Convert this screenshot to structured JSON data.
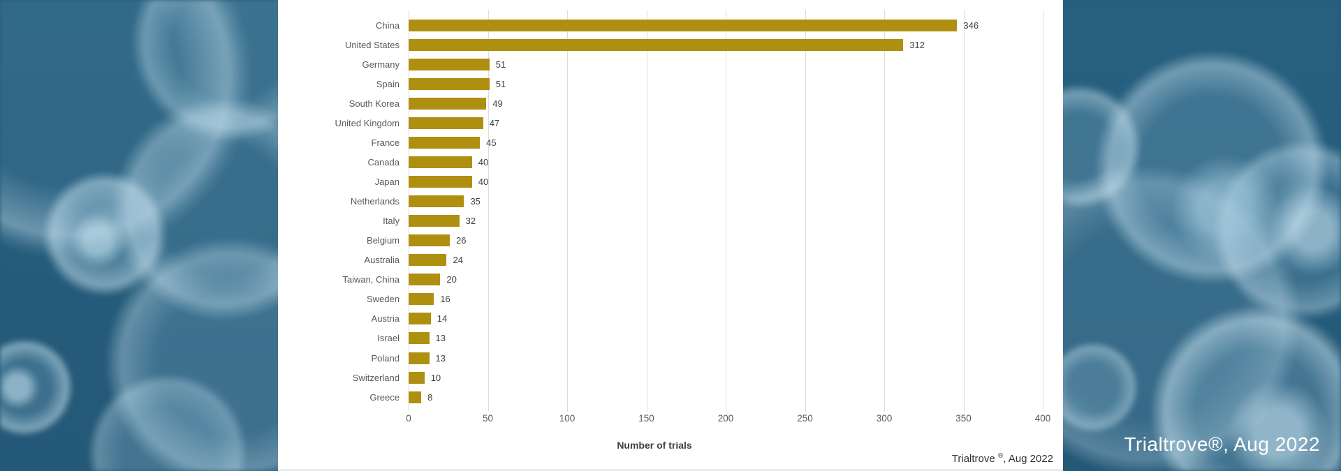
{
  "chart_data": {
    "type": "bar",
    "orientation": "horizontal",
    "title": "",
    "xlabel": "Number of trials",
    "ylabel": "",
    "categories": [
      "China",
      "United States",
      "Germany",
      "Spain",
      "South Korea",
      "United Kingdom",
      "France",
      "Canada",
      "Japan",
      "Netherlands",
      "Italy",
      "Belgium",
      "Australia",
      "Taiwan, China",
      "Sweden",
      "Austria",
      "Israel",
      "Poland",
      "Switzerland",
      "Greece"
    ],
    "values": [
      346,
      312,
      51,
      51,
      49,
      47,
      45,
      40,
      40,
      35,
      32,
      26,
      24,
      20,
      16,
      14,
      13,
      13,
      10,
      8
    ],
    "xlim": [
      0,
      400
    ],
    "xticks": [
      0,
      50,
      100,
      150,
      200,
      250,
      300,
      350,
      400
    ],
    "grid": true,
    "value_labels": true,
    "legend": "none"
  },
  "panel_source": {
    "prefix": "Trialtrove ",
    "registered": "®",
    "suffix": ", Aug 2022"
  },
  "background_caption": "Trialtrove®, Aug 2022",
  "colors": {
    "background": "#265A7B",
    "panel": "#FFFFFF",
    "bar": "#AF8F10",
    "grid": "#DCDCDC",
    "category_label": "#595959",
    "value_label": "#404040",
    "caption": "#FFFFFF"
  }
}
